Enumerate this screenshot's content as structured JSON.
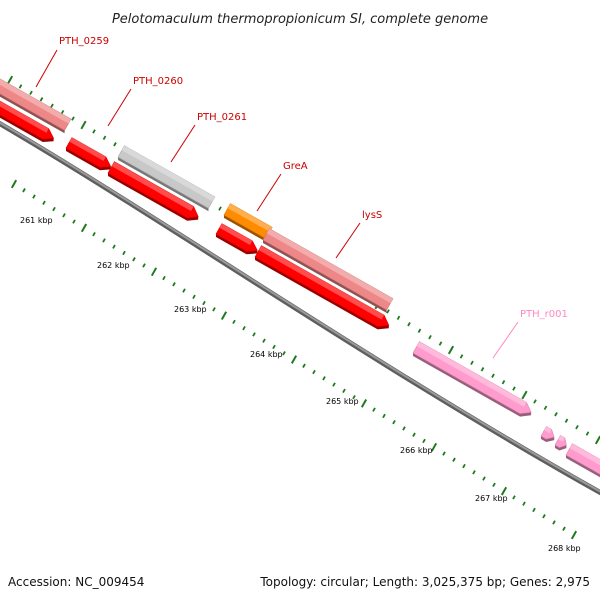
{
  "title": "Pelotomaculum thermopropionicum SI, complete genome",
  "footer": {
    "accession": "Accession: NC_009454",
    "summary": "Topology: circular; Length: 3,025,375 bp; Genes: 2,975"
  },
  "colors": {
    "backbone": "#808080",
    "tick": "#1f7a1f",
    "cds_plain": "#ff0000",
    "cds_named": "#ee8888",
    "cds_grey": "#c8c8c8",
    "trna": "#ff8c00",
    "rrna": "#ff9ccd",
    "label_red": "#cc0000",
    "label_pink": "#ff88c0"
  },
  "genes": [
    {
      "label": "PTH_0259"
    },
    {
      "label": "PTH_0260"
    },
    {
      "label": "PTH_0261"
    },
    {
      "label": "GreA"
    },
    {
      "label": "lysS"
    },
    {
      "label": "PTH_r001"
    }
  ],
  "ticks": [
    {
      "label": "261 kbp"
    },
    {
      "label": "262 kbp"
    },
    {
      "label": "263 kbp"
    },
    {
      "label": "264 kbp"
    },
    {
      "label": "265 kbp"
    },
    {
      "label": "266 kbp"
    },
    {
      "label": "267 kbp"
    },
    {
      "label": "268 kbp"
    }
  ]
}
